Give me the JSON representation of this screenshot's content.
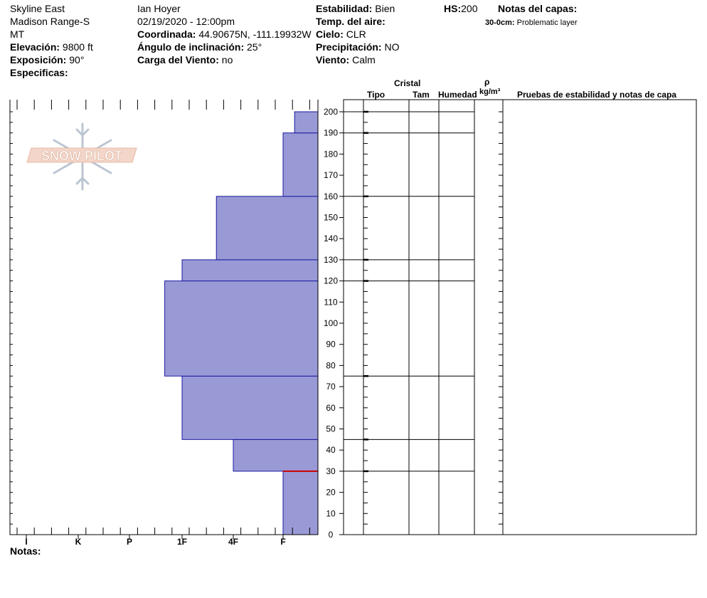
{
  "header": {
    "location": "Skyline East",
    "range": "Madison Range-S",
    "state": "MT",
    "elevation_label": "Elevación:",
    "elevation": "9800 ft",
    "aspect_label": "Exposición:",
    "aspect": "90°",
    "specifics_label": "Especificas:",
    "observer": "Ian Hoyer",
    "datetime": "02/19/2020 - 12:00pm",
    "coord_label": "Coordinada:",
    "coord": "44.90675N, -111.19932W",
    "slope_label": "Ángulo de inclinación:",
    "slope": "25°",
    "wind_load_label": "Carga del Viento:",
    "wind_load": "no",
    "stability_label": "Estabilidad:",
    "stability": "Bien",
    "air_temp_label": "Temp. del aire:",
    "sky_label": "Cielo:",
    "sky": "CLR",
    "precip_label": "Precipitación:",
    "precip": "NO",
    "wind_label": "Viento:",
    "wind": "Calm",
    "hs_label": "HS:",
    "hs": "200",
    "layer_notes_label": "Notas del capas:",
    "layer_note_depth": "30-0cm:",
    "layer_note_text": "Problematic layer"
  },
  "logo": {
    "text": "SNOW PILOT"
  },
  "table_headers": {
    "cristal": "Cristal",
    "tipo": "Tipo",
    "tam": "Tam",
    "humedad": "Humedad",
    "rho": "ρ",
    "density_unit": "kg/m³",
    "tests": "Pruebas de estabilidad y notas de capa"
  },
  "footer": {
    "notes_label": "Notas:"
  },
  "colors": {
    "layer_fill": "#9999d6",
    "layer_stroke": "#1a1aa0",
    "weak_layer": "#cc0000"
  },
  "chart_data": {
    "type": "bar",
    "orientation": "horizontal-step",
    "hardness_ticks": [
      "I",
      "K",
      "P",
      "1F",
      "4F",
      "F"
    ],
    "hardness_scale_note": "right edge = F, left edge = I",
    "y_ticks": [
      0,
      10,
      20,
      30,
      40,
      50,
      60,
      70,
      80,
      90,
      100,
      110,
      120,
      130,
      140,
      150,
      160,
      170,
      180,
      190,
      200
    ],
    "ylim": [
      0,
      200
    ],
    "layers": [
      {
        "bottom": 0,
        "top": 30,
        "hardness_index": 1.0
      },
      {
        "bottom": 30,
        "top": 45,
        "hardness_index": 2.0
      },
      {
        "bottom": 45,
        "top": 75,
        "hardness_index": 3.0
      },
      {
        "bottom": 75,
        "top": 120,
        "hardness_index": 3.33
      },
      {
        "bottom": 120,
        "top": 130,
        "hardness_index": 3.0
      },
      {
        "bottom": 130,
        "top": 160,
        "hardness_index": 2.33
      },
      {
        "bottom": 160,
        "top": 190,
        "hardness_index": 1.0
      },
      {
        "bottom": 190,
        "top": 200,
        "hardness_index": 0.67
      }
    ],
    "weak_layer_depth": 30,
    "boundaries": [
      30,
      45,
      75,
      120,
      130,
      160,
      190,
      200
    ]
  }
}
